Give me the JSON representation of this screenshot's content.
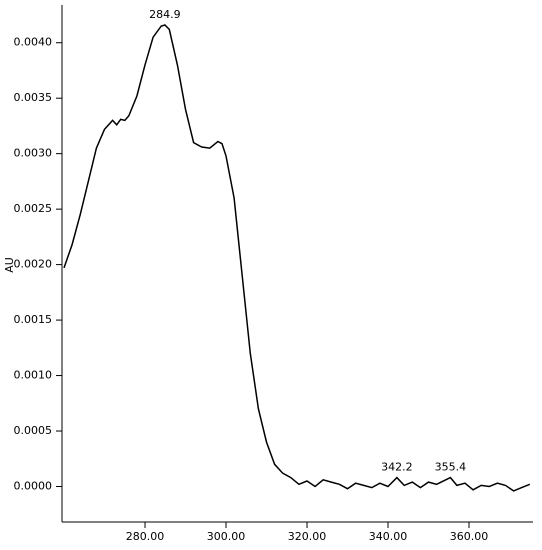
{
  "chart_data": {
    "type": "line",
    "ylabel": "AU",
    "x": [
      260,
      262,
      264,
      266,
      268,
      270,
      272,
      273,
      274,
      275,
      276,
      278,
      280,
      282,
      284,
      284.9,
      286,
      288,
      290,
      292,
      294,
      296,
      298,
      299,
      300,
      302,
      304,
      306,
      308,
      310,
      312,
      314,
      316,
      318,
      320,
      322,
      324,
      326,
      328,
      330,
      332,
      334,
      336,
      338,
      340,
      342.2,
      344,
      346,
      348,
      350,
      352,
      355.4,
      357,
      359,
      361,
      363,
      365,
      367,
      369,
      371,
      373,
      375
    ],
    "values": [
      0.00197,
      0.00218,
      0.00245,
      0.00275,
      0.00305,
      0.00322,
      0.0033,
      0.00326,
      0.00331,
      0.0033,
      0.00334,
      0.00352,
      0.0038,
      0.00405,
      0.00415,
      0.00416,
      0.00412,
      0.0038,
      0.0034,
      0.0031,
      0.00306,
      0.00305,
      0.00311,
      0.00309,
      0.00298,
      0.0026,
      0.0019,
      0.0012,
      0.0007,
      0.0004,
      0.0002,
      0.00012,
      8e-05,
      2e-05,
      5e-05,
      0.0,
      6e-05,
      4e-05,
      2e-05,
      -2e-05,
      3e-05,
      1e-05,
      -1e-05,
      3e-05,
      0.0,
      8e-05,
      1e-05,
      4e-05,
      -1e-05,
      4e-05,
      2e-05,
      8e-05,
      1e-05,
      3e-05,
      -3e-05,
      1e-05,
      0.0,
      3e-05,
      1e-05,
      -4e-05,
      -1e-05,
      2e-05
    ],
    "color": "#000000",
    "peaks": [
      284.9,
      342.2,
      355.4
    ],
    "xlim": [
      259.5,
      375.8
    ],
    "ylim": [
      -0.00032,
      0.00434
    ],
    "xticks": [
      {
        "value": 280,
        "label": "280.00"
      },
      {
        "value": 300,
        "label": "300.00"
      },
      {
        "value": 320,
        "label": "320.00"
      },
      {
        "value": 340,
        "label": "340.00"
      },
      {
        "value": 360,
        "label": "360.00"
      }
    ],
    "yticks": [
      {
        "value": 0,
        "label": "0.0000"
      },
      {
        "value": 0.0005,
        "label": "0.0005"
      },
      {
        "value": 0.001,
        "label": "0.0010"
      },
      {
        "value": 0.0015,
        "label": "0.0015"
      },
      {
        "value": 0.002,
        "label": "0.0020"
      },
      {
        "value": 0.0025,
        "label": "0.0025"
      },
      {
        "value": 0.003,
        "label": "0.0030"
      },
      {
        "value": 0.0035,
        "label": "0.0035"
      },
      {
        "value": 0.004,
        "label": "0.0040"
      }
    ]
  }
}
